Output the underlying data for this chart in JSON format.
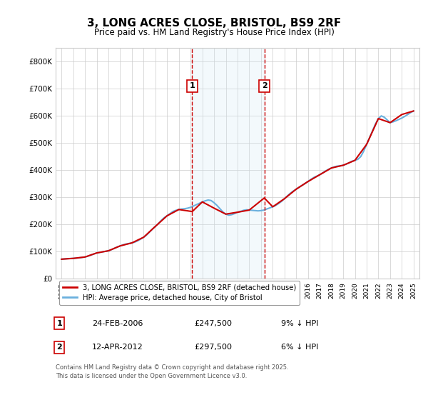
{
  "title": "3, LONG ACRES CLOSE, BRISTOL, BS9 2RF",
  "subtitle": "Price paid vs. HM Land Registry's House Price Index (HPI)",
  "ylabel_ticks": [
    "£0",
    "£100K",
    "£200K",
    "£300K",
    "£400K",
    "£500K",
    "£600K",
    "£700K",
    "£800K"
  ],
  "ytick_vals": [
    0,
    100000,
    200000,
    300000,
    400000,
    500000,
    600000,
    700000,
    800000
  ],
  "ylim": [
    0,
    850000
  ],
  "xlim_start": 1994.5,
  "xlim_end": 2025.5,
  "xticks": [
    1995,
    1996,
    1997,
    1998,
    1999,
    2000,
    2001,
    2002,
    2003,
    2004,
    2005,
    2006,
    2007,
    2008,
    2009,
    2010,
    2011,
    2012,
    2013,
    2014,
    2015,
    2016,
    2017,
    2018,
    2019,
    2020,
    2021,
    2022,
    2023,
    2024,
    2025
  ],
  "sale1_x": 2006.14,
  "sale1_y": 247500,
  "sale1_label": "1",
  "sale2_x": 2012.28,
  "sale2_y": 297500,
  "sale2_label": "2",
  "hpi_color": "#6ab0de",
  "price_color": "#cc0000",
  "sale_marker_color": "#cc0000",
  "vline_color": "#cc0000",
  "shade_color": "#d0e8f5",
  "legend_label_price": "3, LONG ACRES CLOSE, BRISTOL, BS9 2RF (detached house)",
  "legend_label_hpi": "HPI: Average price, detached house, City of Bristol",
  "footnote": "Contains HM Land Registry data © Crown copyright and database right 2025.\nThis data is licensed under the Open Government Licence v3.0.",
  "table_rows": [
    {
      "num": "1",
      "date": "24-FEB-2006",
      "price": "£247,500",
      "pct": "9% ↓ HPI"
    },
    {
      "num": "2",
      "date": "12-APR-2012",
      "price": "£297,500",
      "pct": "6% ↓ HPI"
    }
  ],
  "hpi_data": {
    "years": [
      1995,
      1995.25,
      1995.5,
      1995.75,
      1996,
      1996.25,
      1996.5,
      1996.75,
      1997,
      1997.25,
      1997.5,
      1997.75,
      1998,
      1998.25,
      1998.5,
      1998.75,
      1999,
      1999.25,
      1999.5,
      1999.75,
      2000,
      2000.25,
      2000.5,
      2000.75,
      2001,
      2001.25,
      2001.5,
      2001.75,
      2002,
      2002.25,
      2002.5,
      2002.75,
      2003,
      2003.25,
      2003.5,
      2003.75,
      2004,
      2004.25,
      2004.5,
      2004.75,
      2005,
      2005.25,
      2005.5,
      2005.75,
      2006,
      2006.25,
      2006.5,
      2006.75,
      2007,
      2007.25,
      2007.5,
      2007.75,
      2008,
      2008.25,
      2008.5,
      2008.75,
      2009,
      2009.25,
      2009.5,
      2009.75,
      2010,
      2010.25,
      2010.5,
      2010.75,
      2011,
      2011.25,
      2011.5,
      2011.75,
      2012,
      2012.25,
      2012.5,
      2012.75,
      2013,
      2013.25,
      2013.5,
      2013.75,
      2014,
      2014.25,
      2014.5,
      2014.75,
      2015,
      2015.25,
      2015.5,
      2015.75,
      2016,
      2016.25,
      2016.5,
      2016.75,
      2017,
      2017.25,
      2017.5,
      2017.75,
      2018,
      2018.25,
      2018.5,
      2018.75,
      2019,
      2019.25,
      2019.5,
      2019.75,
      2020,
      2020.25,
      2020.5,
      2020.75,
      2021,
      2021.25,
      2021.5,
      2021.75,
      2022,
      2022.25,
      2022.5,
      2022.75,
      2023,
      2023.25,
      2023.5,
      2023.75,
      2024,
      2024.25,
      2024.5,
      2024.75,
      2025
    ],
    "values": [
      72000,
      73000,
      74000,
      74500,
      75000,
      76000,
      77000,
      78500,
      80000,
      83000,
      87000,
      91000,
      95000,
      97000,
      99000,
      101000,
      103000,
      107000,
      112000,
      117000,
      121000,
      125000,
      128000,
      130000,
      132000,
      135000,
      140000,
      146000,
      153000,
      161000,
      172000,
      183000,
      193000,
      203000,
      215000,
      225000,
      232000,
      240000,
      248000,
      252000,
      255000,
      257000,
      258000,
      260000,
      263000,
      268000,
      273000,
      278000,
      283000,
      287000,
      290000,
      288000,
      280000,
      270000,
      258000,
      246000,
      238000,
      234000,
      236000,
      240000,
      245000,
      248000,
      252000,
      254000,
      253000,
      252000,
      251000,
      250000,
      251000,
      253000,
      257000,
      261000,
      265000,
      270000,
      277000,
      285000,
      295000,
      305000,
      315000,
      323000,
      330000,
      337000,
      344000,
      351000,
      358000,
      366000,
      373000,
      378000,
      383000,
      390000,
      397000,
      403000,
      408000,
      412000,
      415000,
      416000,
      418000,
      422000,
      427000,
      433000,
      436000,
      440000,
      450000,
      470000,
      495000,
      520000,
      545000,
      570000,
      590000,
      600000,
      595000,
      585000,
      575000,
      578000,
      582000,
      587000,
      592000,
      598000,
      605000,
      612000,
      618000
    ]
  },
  "price_data": {
    "years": [
      1995,
      1996,
      1997,
      1998,
      1999,
      2000,
      2001,
      2002,
      2003,
      2004,
      2005,
      2006.14,
      2007,
      2008,
      2009,
      2010,
      2011,
      2012.28,
      2013,
      2014,
      2015,
      2016,
      2017,
      2018,
      2019,
      2020,
      2021,
      2022,
      2023,
      2024,
      2025
    ],
    "values": [
      72000,
      75000,
      80000,
      95000,
      103000,
      121000,
      132000,
      153000,
      193000,
      232000,
      255000,
      247500,
      283000,
      260000,
      238000,
      245000,
      253000,
      297500,
      265000,
      295000,
      330000,
      358000,
      383000,
      408000,
      418000,
      436000,
      495000,
      590000,
      575000,
      605000,
      618000
    ]
  }
}
